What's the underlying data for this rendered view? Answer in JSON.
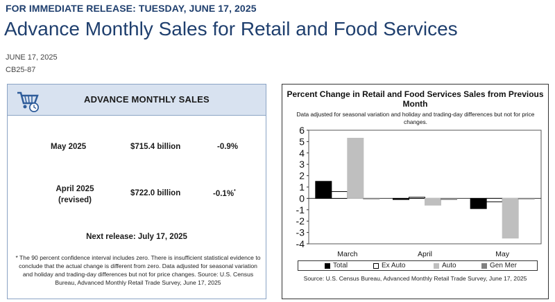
{
  "header": {
    "release_line": "FOR IMMEDIATE RELEASE: TUESDAY, JUNE 17, 2025",
    "title": "Advance Monthly Sales for Retail and Food Services",
    "date": "JUNE 17, 2025",
    "code": "CB25-87"
  },
  "summary": {
    "heading": "ADVANCE MONTHLY SALES",
    "icon": "shopping-cart-clock-icon",
    "rows": [
      {
        "label": "May 2025",
        "label2": "",
        "value": "$715.4 billion",
        "pct": "-0.9%",
        "mark": ""
      },
      {
        "label": "April 2025",
        "label2": "(revised)",
        "value": "$722.0 billion",
        "pct": "-0.1%",
        "mark": "*"
      }
    ],
    "next_release": "Next release: July 17, 2025",
    "footnote": "* The 90 percent confidence interval includes zero. There is insufficient statistical evidence to conclude that the actual change is different from zero. Data adjusted for seasonal variation and holiday and trading-day differences but not for price changes. Source: U.S. Census Bureau, Advanced Monthly Retail Trade Survey, June 17, 2025"
  },
  "chart_data": {
    "type": "bar",
    "title": "Percent Change in Retail and Food Services Sales from Previous Month",
    "subtitle": "Data adjusted for seasonal variation and holiday and trading-day differences but not for price changes.",
    "categories": [
      "March",
      "April",
      "May"
    ],
    "series": [
      {
        "name": "Total",
        "color": "#000000",
        "values": [
          1.5,
          -0.1,
          -0.9
        ]
      },
      {
        "name": "Ex Auto",
        "color": "#ffffff",
        "values": [
          0.6,
          0.1,
          -0.3
        ]
      },
      {
        "name": "Auto",
        "color": "#bfbfbf",
        "values": [
          5.3,
          -0.6,
          -3.5
        ]
      },
      {
        "name": "Gen Mer",
        "color": "#808080",
        "values": [
          0.0,
          -0.1,
          0.0
        ]
      }
    ],
    "ylim": [
      -4,
      6
    ],
    "yticks": [
      "6",
      "5",
      "4",
      "3",
      "2",
      "1",
      "0",
      "-1",
      "-2",
      "-3",
      "-4"
    ],
    "source": "Source: U.S. Census Bureau, Advanced Monthly Retail Trade Survey, June 17, 2025"
  }
}
